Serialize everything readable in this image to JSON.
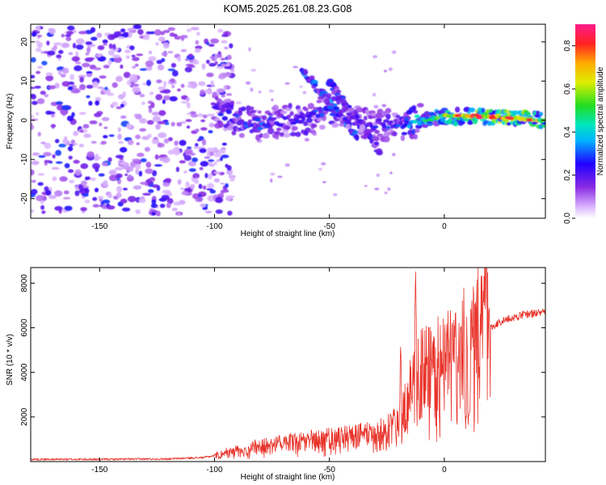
{
  "figure": {
    "title": "KOM5.2025.261.08.23.G08"
  },
  "chart_data": [
    {
      "type": "heatmap",
      "title": "KOM5.2025.261.08.23.G08",
      "xlabel": "Height of straight line (km)",
      "ylabel": "Frequency (Hz)",
      "xlim": [
        -180,
        44
      ],
      "ylim": [
        -25,
        24.5
      ],
      "xticks": [
        -150,
        -100,
        -50,
        0
      ],
      "yticks": [
        -20,
        -10,
        0,
        10,
        20
      ],
      "xtick_labels": [
        "-150",
        "-100",
        "-50",
        "0"
      ],
      "ytick_labels": [
        "-20",
        "-10",
        "0",
        "10",
        "20"
      ],
      "colorbar": {
        "label": "Normalized spectral amplitude",
        "range": [
          0.0,
          0.9
        ],
        "ticks": [
          0.0,
          0.2,
          0.4,
          0.6,
          0.8
        ],
        "tick_labels": [
          "0.0",
          "0.2",
          "0.4",
          "0.6",
          "0.8"
        ],
        "colormap": [
          "#ffffff",
          "#d9b3ff",
          "#8a2be2",
          "#2200ff",
          "#00b3ff",
          "#00e5c0",
          "#22dd22",
          "#ddee00",
          "#ffaa00",
          "#ff2222",
          "#ff1a8c"
        ]
      },
      "features": {
        "noise_region": {
          "x_range": [
            -180,
            -100
          ],
          "f_range": [
            -24,
            24
          ],
          "amplitude": [
            0.05,
            0.3
          ]
        },
        "main_trace": [
          {
            "x": -100,
            "f": 3,
            "amp": 0.25
          },
          {
            "x": -90,
            "f": 0,
            "amp": 0.3
          },
          {
            "x": -80,
            "f": -1,
            "amp": 0.3
          },
          {
            "x": -70,
            "f": 0,
            "amp": 0.25
          },
          {
            "x": -60,
            "f": 0,
            "amp": 0.3
          },
          {
            "x": -50,
            "f": 3,
            "amp": 0.3
          },
          {
            "x": -40,
            "f": 0,
            "amp": 0.25
          },
          {
            "x": -30,
            "f": -1,
            "amp": 0.25
          },
          {
            "x": -20,
            "f": -1,
            "amp": 0.3
          },
          {
            "x": -10,
            "f": 0,
            "amp": 0.45
          },
          {
            "x": 0,
            "f": 1,
            "amp": 0.6
          },
          {
            "x": 10,
            "f": 1,
            "amp": 0.75
          },
          {
            "x": 20,
            "f": 1,
            "amp": 0.85
          },
          {
            "x": 30,
            "f": 0.5,
            "amp": 0.85
          },
          {
            "x": 44,
            "f": 0,
            "amp": 0.7
          }
        ],
        "diagonal_traces": [
          {
            "from": {
              "x": -62,
              "f": 13
            },
            "to": {
              "x": -38,
              "f": -4
            },
            "amp": 0.3
          },
          {
            "from": {
              "x": -50,
              "f": 10
            },
            "to": {
              "x": -28,
              "f": -8
            },
            "amp": 0.25
          }
        ]
      }
    },
    {
      "type": "line",
      "xlabel": "Height of straight line (km)",
      "ylabel": "SNR (10 * v/v)",
      "xlim": [
        -180,
        44
      ],
      "ylim": [
        0,
        8700
      ],
      "xticks": [
        -150,
        -100,
        -50,
        0
      ],
      "yticks": [
        2000,
        4000,
        6000,
        8000
      ],
      "xtick_labels": [
        "-150",
        "-100",
        "-50",
        "0"
      ],
      "ytick_labels": [
        "2000",
        "4000",
        "6000",
        "8000"
      ],
      "color": "#e8332a",
      "envelope": [
        {
          "x": -180,
          "y": 100
        },
        {
          "x": -150,
          "y": 100
        },
        {
          "x": -120,
          "y": 120
        },
        {
          "x": -105,
          "y": 180
        },
        {
          "x": -95,
          "y": 350
        },
        {
          "x": -80,
          "y": 600
        },
        {
          "x": -60,
          "y": 800
        },
        {
          "x": -40,
          "y": 1000
        },
        {
          "x": -25,
          "y": 1200
        },
        {
          "x": -18,
          "y": 2000
        },
        {
          "x": -15,
          "y": 2800
        },
        {
          "x": -12,
          "y": 3200
        },
        {
          "x": -8,
          "y": 3600
        },
        {
          "x": 0,
          "y": 4000
        },
        {
          "x": 8,
          "y": 4400
        },
        {
          "x": 15,
          "y": 5200
        },
        {
          "x": 20,
          "y": 6000
        },
        {
          "x": 25,
          "y": 6300
        },
        {
          "x": 35,
          "y": 6600
        },
        {
          "x": 44,
          "y": 6700
        }
      ],
      "spikes": [
        {
          "x": -12.5,
          "y": 8650
        },
        {
          "x": -19,
          "y": 5300
        },
        {
          "x": 17,
          "y": 7900
        },
        {
          "x": -5,
          "y": 5000
        },
        {
          "x": 10,
          "y": 1800
        }
      ]
    }
  ]
}
